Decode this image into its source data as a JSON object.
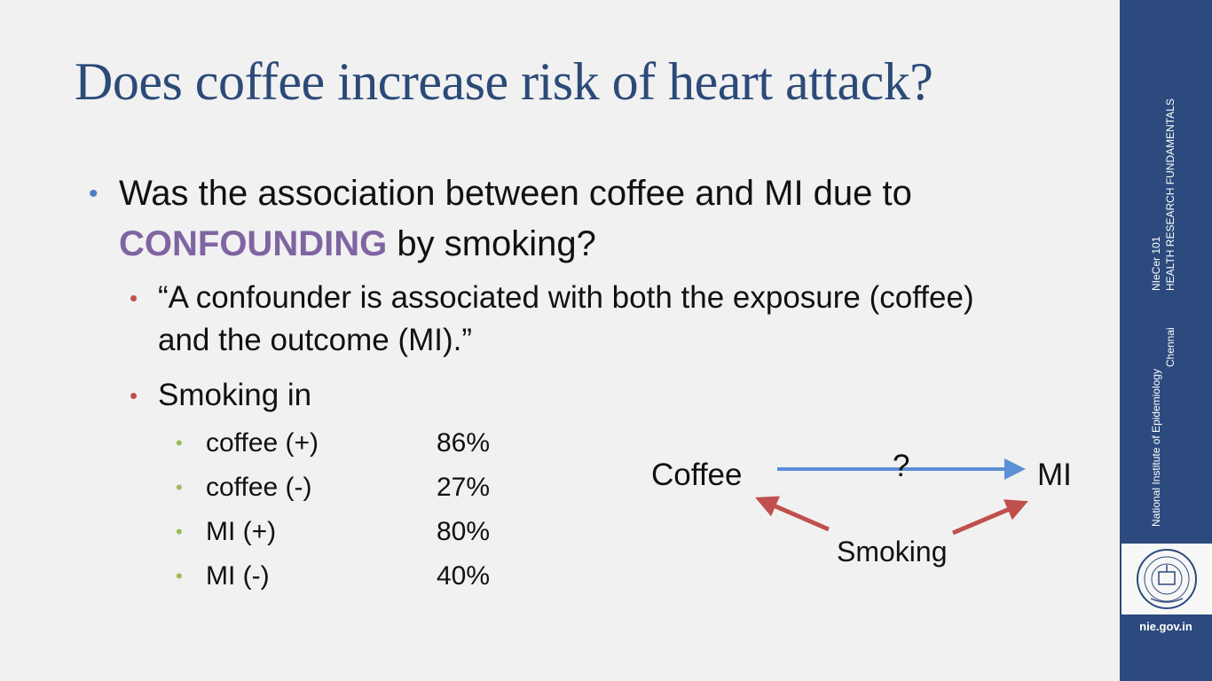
{
  "slide": {
    "title": "Does coffee increase risk of heart attack?",
    "bullet1": {
      "before": "Was the association between coffee and MI due to ",
      "highlight": "CONFOUNDING",
      "after": " by smoking?"
    },
    "bullet2_quote": "“A confounder is associated with both the exposure (coffee) and the outcome (MI).”",
    "bullet2_smoking": "Smoking in",
    "rows": [
      {
        "label": "coffee (+)",
        "value": "86%"
      },
      {
        "label": "coffee (-)",
        "value": "27%"
      },
      {
        "label": "MI (+)",
        "value": "80%"
      },
      {
        "label": "MI (-)",
        "value": "40%"
      }
    ],
    "diagram": {
      "coffee": "Coffee",
      "mi": "MI",
      "question": "?",
      "smoking": "Smoking"
    }
  },
  "sidebar": {
    "course_line1": "NIeCer 101",
    "course_line2": "HEALTH RESEARCH FUNDAMENTALS",
    "institute_line1": "National Institute of Epidemiology",
    "institute_line2": "Chennai",
    "url": "nie.gov.in"
  },
  "colors": {
    "title": "#2b4a78",
    "highlight": "#8064a2",
    "bullet_level1": "#4f7fc1",
    "bullet_level2": "#c0504d",
    "bullet_level3": "#9bbb59",
    "arrow_blue": "#5b8fd6",
    "arrow_red": "#c0504d",
    "sidebar": "#2c4a7d"
  }
}
